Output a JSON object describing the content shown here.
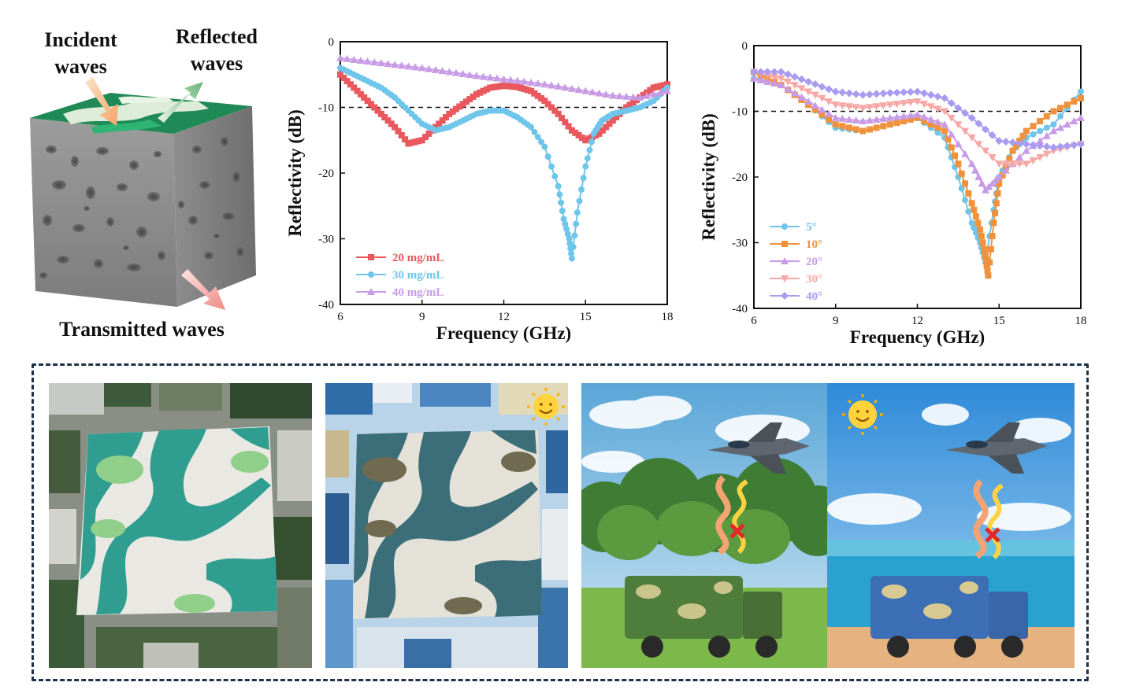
{
  "schematic": {
    "incident_label": "Incident waves",
    "reflected_label": "Reflected waves",
    "transmitted_label": "Transmitted waves"
  },
  "chart_data": [
    {
      "type": "line",
      "xlabel": "Frequency (GHz)",
      "ylabel": "Reflectivity (dB)",
      "xlim": [
        6,
        18
      ],
      "ylim": [
        -40,
        0
      ],
      "xticks": [
        "6",
        "9",
        "12",
        "15",
        "18"
      ],
      "yticks": [
        "0",
        "-10",
        "-20",
        "-30",
        "-40"
      ],
      "reference_line_y": -10,
      "legend_position": "bottom-left",
      "series": [
        {
          "name": "20 mg/mL",
          "color": "#e8585c",
          "marker": "square",
          "x": [
            6,
            6.5,
            7,
            7.5,
            8,
            8.5,
            9,
            9.5,
            10,
            10.5,
            11,
            11.5,
            12,
            12.5,
            13,
            13.5,
            14,
            14.5,
            15,
            15.5,
            16,
            16.5,
            17,
            17.5,
            18
          ],
          "y": [
            -5,
            -7,
            -9,
            -11,
            -13,
            -15.5,
            -15,
            -13,
            -11,
            -9.5,
            -8,
            -7,
            -6.7,
            -6.9,
            -7.5,
            -9,
            -11,
            -13.5,
            -15,
            -14,
            -12,
            -10,
            -8.5,
            -7,
            -6.5
          ]
        },
        {
          "name": "30 mg/mL",
          "color": "#6fc5ea",
          "marker": "circle",
          "x": [
            6,
            6.5,
            7,
            7.5,
            8,
            8.5,
            9,
            9.5,
            10,
            10.5,
            11,
            11.5,
            12,
            12.5,
            13,
            13.5,
            14,
            14.2,
            14.4,
            14.5,
            14.7,
            15,
            15.3,
            15.6,
            16,
            16.5,
            17,
            17.5,
            18
          ],
          "y": [
            -4,
            -5,
            -6,
            -7,
            -8.5,
            -10.5,
            -12.5,
            -13.5,
            -13,
            -12,
            -11,
            -10.5,
            -10.5,
            -11.5,
            -13,
            -16,
            -22,
            -27,
            -30,
            -33,
            -26,
            -19,
            -14,
            -12,
            -11,
            -10.5,
            -10,
            -9,
            -7
          ]
        },
        {
          "name": "40 mg/mL",
          "color": "#c79be6",
          "marker": "triangle",
          "x": [
            6,
            7,
            8,
            9,
            10,
            11,
            12,
            13,
            14,
            15,
            16,
            17,
            18
          ],
          "y": [
            -2.5,
            -3,
            -3.5,
            -4,
            -4.6,
            -5.2,
            -5.7,
            -6.2,
            -6.8,
            -7.5,
            -8.2,
            -8.5,
            -7.5
          ]
        }
      ]
    },
    {
      "type": "line",
      "xlabel": "Frequency (GHz)",
      "ylabel": "Reflectivity (dB)",
      "xlim": [
        6,
        18
      ],
      "ylim": [
        -40,
        0
      ],
      "xticks": [
        "6",
        "9",
        "12",
        "15",
        "18"
      ],
      "yticks": [
        "0",
        "-10",
        "-20",
        "-30",
        "-40"
      ],
      "reference_line_y": -10,
      "legend_position": "bottom-left",
      "series": [
        {
          "name": "5°",
          "color": "#6fc5ea",
          "marker": "circle",
          "x": [
            6,
            7,
            8,
            9,
            10,
            11,
            12,
            13,
            13.5,
            14,
            14.3,
            14.5,
            14.8,
            15,
            15.5,
            16,
            17,
            18
          ],
          "y": [
            -5,
            -6,
            -9,
            -12.5,
            -13,
            -12,
            -11,
            -14,
            -20,
            -27,
            -30,
            -33,
            -25,
            -20,
            -16,
            -14,
            -12,
            -7
          ]
        },
        {
          "name": "10°",
          "color": "#f0923b",
          "marker": "square",
          "x": [
            6,
            7,
            8,
            9,
            10,
            11,
            12,
            13,
            13.5,
            14,
            14.3,
            14.5,
            14.6,
            14.8,
            15,
            15.5,
            16,
            17,
            18
          ],
          "y": [
            -4,
            -6,
            -9,
            -12,
            -13,
            -12,
            -11,
            -13,
            -18,
            -24,
            -28,
            -32,
            -35,
            -27,
            -21,
            -16,
            -13,
            -10,
            -8
          ]
        },
        {
          "name": "20°",
          "color": "#c79be6",
          "marker": "triangle",
          "x": [
            6,
            7,
            8,
            9,
            10,
            11,
            12,
            13,
            14,
            14.5,
            15,
            16,
            17,
            18
          ],
          "y": [
            -5,
            -6,
            -8.5,
            -11,
            -11.5,
            -11,
            -10.5,
            -12,
            -18,
            -22,
            -20,
            -16,
            -13,
            -11
          ]
        },
        {
          "name": "30°",
          "color": "#f7a8a6",
          "marker": "triangle-down",
          "x": [
            6,
            7,
            8,
            9,
            10,
            11,
            12,
            13,
            14,
            15,
            16,
            17,
            18
          ],
          "y": [
            -4,
            -5,
            -7,
            -9,
            -9.5,
            -9,
            -8.5,
            -10,
            -14,
            -18,
            -18,
            -16,
            -15
          ]
        },
        {
          "name": "40°",
          "color": "#a99cf0",
          "marker": "diamond",
          "x": [
            6,
            7,
            8,
            9,
            10,
            11,
            12,
            13,
            14,
            15,
            16,
            17,
            18
          ],
          "y": [
            -4,
            -4,
            -5.5,
            -7,
            -7.5,
            -7.2,
            -7,
            -8,
            -11,
            -14.5,
            -15,
            -15.5,
            -15
          ]
        }
      ]
    }
  ],
  "photos": {
    "panel1": "green camouflage sample on woodland fabric",
    "panel2": "blue camouflage sample on digital fabric",
    "panel3": "woodland scene with jet and camouflaged truck",
    "panel4": "ocean scene with jet and camouflaged truck"
  },
  "colors": {
    "frame": "#1e3148",
    "green_camo": "#2f9d8f",
    "blue_sky": "#3a8fd6"
  },
  "icons": [
    "sun-icon",
    "jet-icon",
    "truck-icon",
    "cross-icon",
    "wave-arrow-icon"
  ]
}
